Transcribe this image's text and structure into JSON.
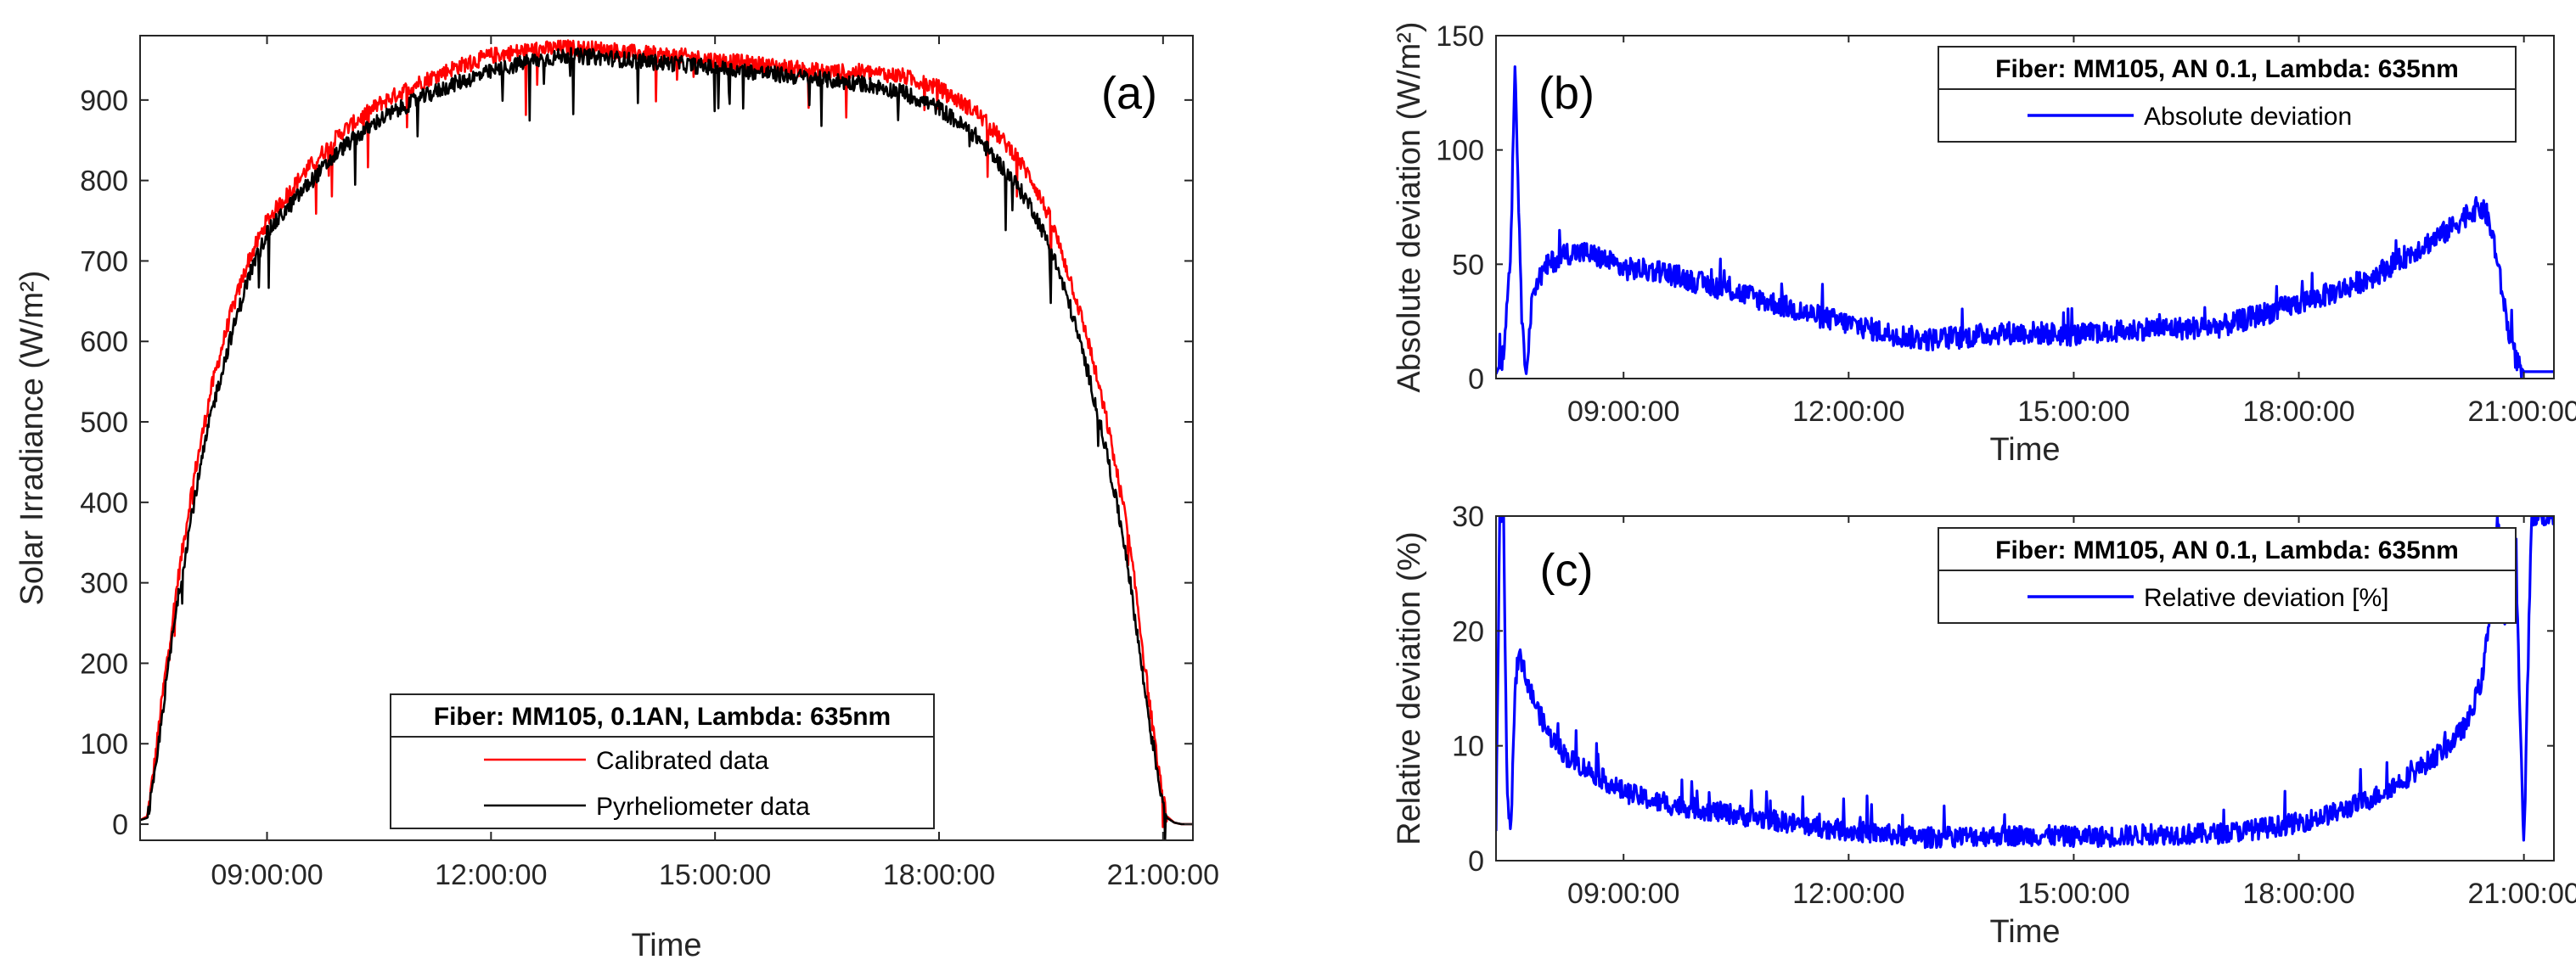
{
  "chart_data": [
    {
      "type": "line",
      "panel_label": "(a)",
      "xlabel": "Time",
      "ylabel": "Solar Irradiance (W/m²)",
      "ylim": [
        -20,
        980
      ],
      "xlim_hours": [
        7.3,
        21.4
      ],
      "x_ticks": [
        {
          "value": 9,
          "label": "09:00:00"
        },
        {
          "value": 12,
          "label": "12:00:00"
        },
        {
          "value": 15,
          "label": "15:00:00"
        },
        {
          "value": 18,
          "label": "18:00:00"
        },
        {
          "value": 21,
          "label": "21:00:00"
        }
      ],
      "y_ticks": [
        {
          "value": 0,
          "label": "0"
        },
        {
          "value": 100,
          "label": "100"
        },
        {
          "value": 200,
          "label": "200"
        },
        {
          "value": 300,
          "label": "300"
        },
        {
          "value": 400,
          "label": "400"
        },
        {
          "value": 500,
          "label": "500"
        },
        {
          "value": 600,
          "label": "600"
        },
        {
          "value": 700,
          "label": "700"
        },
        {
          "value": 800,
          "label": "800"
        },
        {
          "value": 900,
          "label": "900"
        }
      ],
      "legend": {
        "title": "Fiber: MM105, 0.1AN, Lambda: 635nm",
        "placement": "bottom-center",
        "entries": [
          "Calibrated data",
          "Pyrheliometer data"
        ]
      },
      "x": [
        7.3,
        7.4,
        7.5,
        7.6,
        7.7,
        7.8,
        8.0,
        8.25,
        8.5,
        8.75,
        9.0,
        9.5,
        10.0,
        10.5,
        11.0,
        11.5,
        12.0,
        12.5,
        13.0,
        13.5,
        14.0,
        14.5,
        15.0,
        15.5,
        16.0,
        16.5,
        17.0,
        17.5,
        18.0,
        18.5,
        19.0,
        19.25,
        19.5,
        19.75,
        20.0,
        20.25,
        20.5,
        20.65,
        20.75,
        20.85,
        20.95,
        21.05,
        21.15,
        21.25,
        21.4
      ],
      "series": [
        {
          "name": "Calibrated data",
          "color": "#ff0000",
          "values": [
            5,
            10,
            80,
            160,
            230,
            300,
            420,
            540,
            630,
            700,
            750,
            810,
            860,
            895,
            920,
            940,
            955,
            962,
            965,
            963,
            958,
            955,
            950,
            945,
            940,
            935,
            935,
            930,
            915,
            885,
            835,
            800,
            750,
            680,
            600,
            500,
            380,
            280,
            200,
            130,
            60,
            10,
            2,
            0,
            0
          ]
        },
        {
          "name": "Pyrheliometer data",
          "color": "#000000",
          "values": [
            5,
            8,
            60,
            140,
            210,
            275,
            390,
            510,
            600,
            680,
            735,
            790,
            840,
            875,
            900,
            920,
            935,
            948,
            955,
            953,
            948,
            945,
            940,
            935,
            930,
            925,
            920,
            910,
            890,
            855,
            800,
            765,
            715,
            645,
            560,
            460,
            340,
            240,
            170,
            110,
            50,
            8,
            2,
            0,
            0
          ]
        }
      ]
    },
    {
      "type": "line",
      "panel_label": "(b)",
      "xlabel": "Time",
      "ylabel": "Absolute deviation (W/m²)",
      "ylim": [
        0,
        150
      ],
      "xlim_hours": [
        7.3,
        21.4
      ],
      "x_ticks": [
        {
          "value": 9,
          "label": "09:00:00"
        },
        {
          "value": 12,
          "label": "12:00:00"
        },
        {
          "value": 15,
          "label": "15:00:00"
        },
        {
          "value": 18,
          "label": "18:00:00"
        },
        {
          "value": 21,
          "label": "21:00:00"
        }
      ],
      "y_ticks": [
        {
          "value": 0,
          "label": "0"
        },
        {
          "value": 50,
          "label": "50"
        },
        {
          "value": 100,
          "label": "100"
        },
        {
          "value": 150,
          "label": "150"
        }
      ],
      "legend": {
        "title": "Fiber: MM105, AN 0.1, Lambda: 635nm",
        "placement": "top-right",
        "entries": [
          "Absolute deviation"
        ]
      },
      "x": [
        7.3,
        7.4,
        7.5,
        7.55,
        7.6,
        7.65,
        7.7,
        7.8,
        8.0,
        8.25,
        8.5,
        8.75,
        9.0,
        9.5,
        10.0,
        10.5,
        11.0,
        11.5,
        12.0,
        12.5,
        13.0,
        13.5,
        14.0,
        14.5,
        15.0,
        15.5,
        16.0,
        16.5,
        17.0,
        17.5,
        18.0,
        18.5,
        19.0,
        19.5,
        20.0,
        20.25,
        20.4,
        20.5,
        20.6,
        20.7,
        20.8,
        20.9,
        21.0,
        21.1,
        21.2,
        21.4
      ],
      "series": [
        {
          "name": "Absolute deviation",
          "color": "#0000ff",
          "values": [
            2,
            10,
            60,
            140,
            80,
            20,
            5,
            40,
            50,
            55,
            55,
            52,
            48,
            47,
            42,
            38,
            33,
            28,
            24,
            20,
            17,
            18,
            20,
            20,
            19,
            20,
            22,
            22,
            23,
            28,
            33,
            38,
            45,
            55,
            65,
            72,
            75,
            72,
            60,
            40,
            20,
            8,
            3,
            3,
            3,
            3
          ]
        }
      ]
    },
    {
      "type": "line",
      "panel_label": "(c)",
      "xlabel": "Time",
      "ylabel": "Relative deviation (%)",
      "ylim": [
        0,
        30
      ],
      "xlim_hours": [
        7.3,
        21.4
      ],
      "x_ticks": [
        {
          "value": 9,
          "label": "09:00:00"
        },
        {
          "value": 12,
          "label": "12:00:00"
        },
        {
          "value": 15,
          "label": "15:00:00"
        },
        {
          "value": 18,
          "label": "18:00:00"
        },
        {
          "value": 21,
          "label": "21:00:00"
        }
      ],
      "y_ticks": [
        {
          "value": 0,
          "label": "0"
        },
        {
          "value": 10,
          "label": "10"
        },
        {
          "value": 20,
          "label": "20"
        },
        {
          "value": 30,
          "label": "30"
        }
      ],
      "legend": {
        "title": "Fiber: MM105, AN 0.1, Lambda: 635nm",
        "placement": "top-right",
        "entries": [
          "Relative deviation [%]"
        ]
      },
      "x": [
        7.3,
        7.35,
        7.4,
        7.45,
        7.5,
        7.55,
        7.6,
        7.65,
        7.7,
        7.8,
        8.0,
        8.25,
        8.5,
        8.75,
        9.0,
        9.5,
        10.0,
        10.5,
        11.0,
        11.5,
        12.0,
        12.5,
        13.0,
        13.5,
        14.0,
        14.5,
        15.0,
        15.5,
        16.0,
        16.5,
        17.0,
        17.5,
        18.0,
        18.5,
        19.0,
        19.5,
        20.0,
        20.25,
        20.45,
        20.55,
        20.65,
        20.75,
        20.85,
        20.9,
        20.95,
        21.0,
        21.1,
        21.4
      ],
      "series": [
        {
          "name": "Relative deviation [%]",
          "color": "#0000ff",
          "values": [
            3,
            30,
            30,
            5,
            2,
            15,
            18,
            17,
            16,
            14,
            11,
            9,
            8,
            7,
            6,
            5,
            4.5,
            4,
            3.5,
            3,
            2.6,
            2.3,
            2.0,
            2.1,
            2.2,
            2.2,
            2.1,
            2.1,
            2.3,
            2.3,
            2.4,
            2.8,
            3.3,
            4.2,
            5.5,
            7.5,
            10,
            12,
            16,
            22,
            30,
            20,
            28,
            25,
            12,
            1,
            30,
            30
          ]
        }
      ]
    }
  ]
}
